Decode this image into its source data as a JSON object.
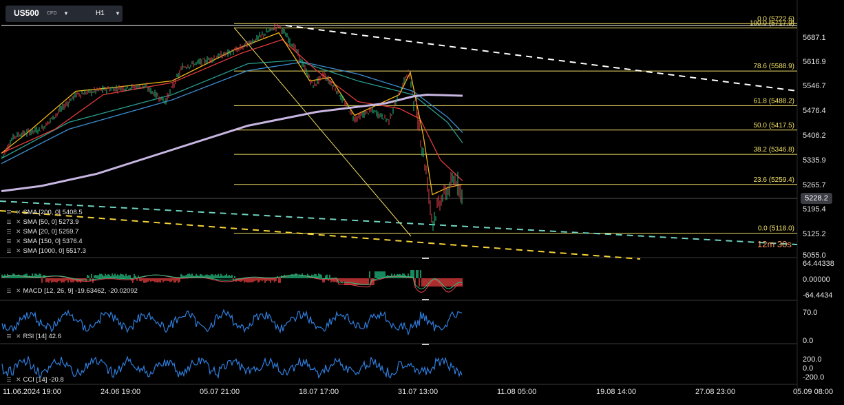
{
  "toolbar": {
    "symbol": "US500",
    "asset_class": "CFD",
    "timeframe": "H1",
    "icons": [
      "chevron-down-icon"
    ]
  },
  "price_axis": {
    "labels": [
      "5687.1",
      "5616.9",
      "5546.7",
      "5476.4",
      "5406.2",
      "5335.9",
      "5265.7",
      "5195.4",
      "5125.2",
      "5055.0"
    ],
    "current_price": "5228.2",
    "countdown": "12m 30s"
  },
  "fibonacci": {
    "levels": [
      {
        "label": "0.0 (5722.6)",
        "price": 5722.6
      },
      {
        "label": "100.0 (5717.9)",
        "price": 5717.9
      },
      {
        "label": "78.6 (5588.9)",
        "price": 5588.9
      },
      {
        "label": "61.8 (5488.2)",
        "price": 5488.2
      },
      {
        "label": "50.0 (5417.5)",
        "price": 5417.5
      },
      {
        "label": "38.2 (5346.8)",
        "price": 5346.8
      },
      {
        "label": "23.6 (5259.4)",
        "price": 5259.4
      },
      {
        "label": "0.0 (5118.0)",
        "price": 5118.0
      }
    ]
  },
  "indicators": {
    "sma": [
      {
        "label": "SMA [200, 0] 5408.5",
        "color": "#2a9d8f"
      },
      {
        "label": "SMA [50, 0] 5273.9",
        "color": "#e23b3b"
      },
      {
        "label": "SMA [20, 0] 5259.7",
        "color": "#f2b517"
      },
      {
        "label": "SMA [150, 0] 5376.4",
        "color": "#3c8ed0"
      },
      {
        "label": "SMA [1000, 0] 5517.3",
        "color": "#c8b6e2"
      }
    ],
    "macd": {
      "label": "MACD [12, 26, 9] -19.63462, -20.02092",
      "axis": [
        "64.44338",
        "0.00000",
        "-64.4434"
      ]
    },
    "rsi": {
      "label": "RSI [14] 42.6",
      "axis": [
        "70.0",
        "0.0"
      ]
    },
    "cci": {
      "label": "CCI [14] -20.8",
      "axis": [
        "200.0",
        "0.0",
        "-200.0"
      ]
    }
  },
  "time_axis": {
    "labels": [
      "11.06.2024  19:00",
      "24.06  19:00",
      "05.07  21:00",
      "18.07  17:00",
      "31.07  13:00",
      "11.08  05:00",
      "19.08  14:00",
      "27.08  23:00",
      "05.09  08:00"
    ]
  },
  "colors": {
    "background": "#000000",
    "fib_line": "#f2e066",
    "trend_line": "#ffffff",
    "channel_cyan": "#6fd3c0",
    "channel_yellow": "#f5d33a",
    "indicator_line": "#2f7fe0",
    "macd_up": "#1fb77a",
    "macd_down": "#e33c3c"
  }
}
